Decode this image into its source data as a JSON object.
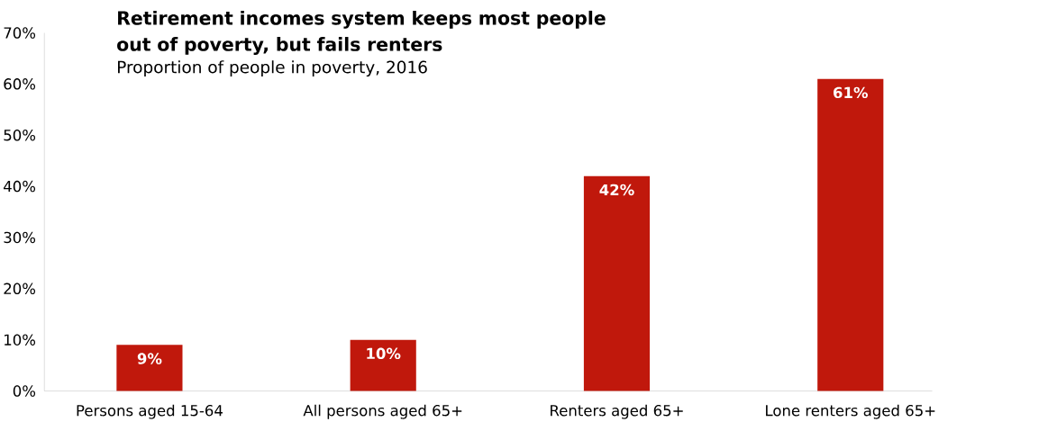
{
  "chart_data": {
    "type": "bar",
    "title": "Retirement incomes system keeps most people out of poverty, but fails renters",
    "subtitle": "Proportion of people in poverty, 2016",
    "categories": [
      "Persons aged 15-64",
      "All persons aged 65+",
      "Renters aged 65+",
      "Lone renters aged 65+"
    ],
    "values": [
      9,
      10,
      42,
      61
    ],
    "value_labels": [
      "9%",
      "10%",
      "42%",
      "61%"
    ],
    "color": "#c0180c",
    "ylim": [
      0,
      70
    ],
    "yticks": [
      {
        "value": 0,
        "label": "0%"
      },
      {
        "value": 10,
        "label": "10%"
      },
      {
        "value": 20,
        "label": "20%"
      },
      {
        "value": 30,
        "label": "30%"
      },
      {
        "value": 40,
        "label": "40%"
      },
      {
        "value": 50,
        "label": "50%"
      },
      {
        "value": 60,
        "label": "60%"
      },
      {
        "value": 70,
        "label": "70%"
      }
    ],
    "grid": false
  }
}
